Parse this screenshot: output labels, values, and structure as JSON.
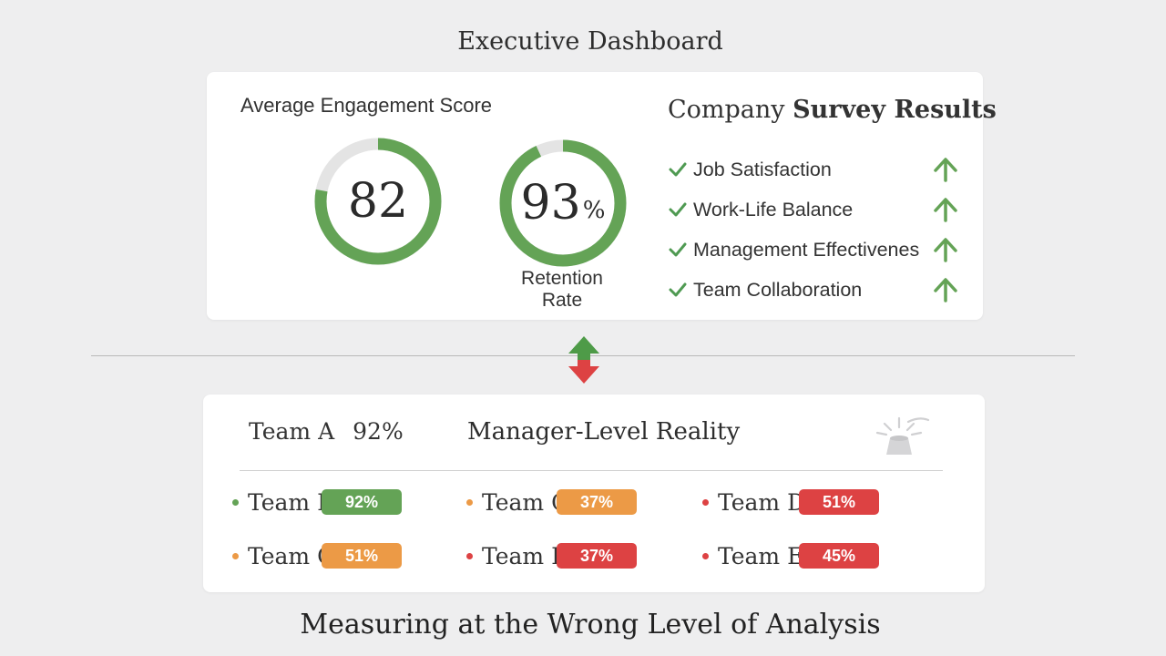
{
  "dashboard_title": "Executive Dashboard",
  "engagement": {
    "label": "Average Engagement Score",
    "value": "82",
    "progress": 0.78
  },
  "retention": {
    "value": "93",
    "unit": "%",
    "label_line1": "Retention",
    "label_line2": "Rate",
    "progress": 0.93
  },
  "survey": {
    "title_plain": "Company",
    "title_bold": "Survey Results",
    "items": [
      {
        "label": "Job Satisfaction",
        "trend": "up"
      },
      {
        "label": "Work-Life Balance",
        "trend": "up"
      },
      {
        "label": "Management Effectivenes",
        "trend": "up"
      },
      {
        "label": "Team Collaboration",
        "trend": "up"
      }
    ]
  },
  "reality": {
    "team_a_name": "Team A",
    "team_a_value": "92%",
    "title": "Manager-Level Reality",
    "teams": [
      {
        "name": "Team B",
        "value": "92%",
        "status": "good"
      },
      {
        "name": "Team C",
        "value": "37%",
        "status": "warn"
      },
      {
        "name": "Team D",
        "value": "51%",
        "status": "bad"
      },
      {
        "name": "Team C",
        "value": "51%",
        "status": "warn"
      },
      {
        "name": "Team E",
        "value": "37%",
        "status": "bad"
      },
      {
        "name": "Team E",
        "value": "45%",
        "status": "bad"
      }
    ]
  },
  "footer_title": "Measuring at the Wrong Level of Analysis",
  "colors": {
    "green": "#64a356",
    "orange": "#ec9a46",
    "red": "#dd4243",
    "gauge_track": "#e4e4e4",
    "check": "#4f9a52"
  },
  "icons": {
    "check": "check-icon",
    "trend": "arrow-up-icon",
    "swap": "up-down-arrows-icon",
    "spotlight": "spotlight-icon"
  }
}
